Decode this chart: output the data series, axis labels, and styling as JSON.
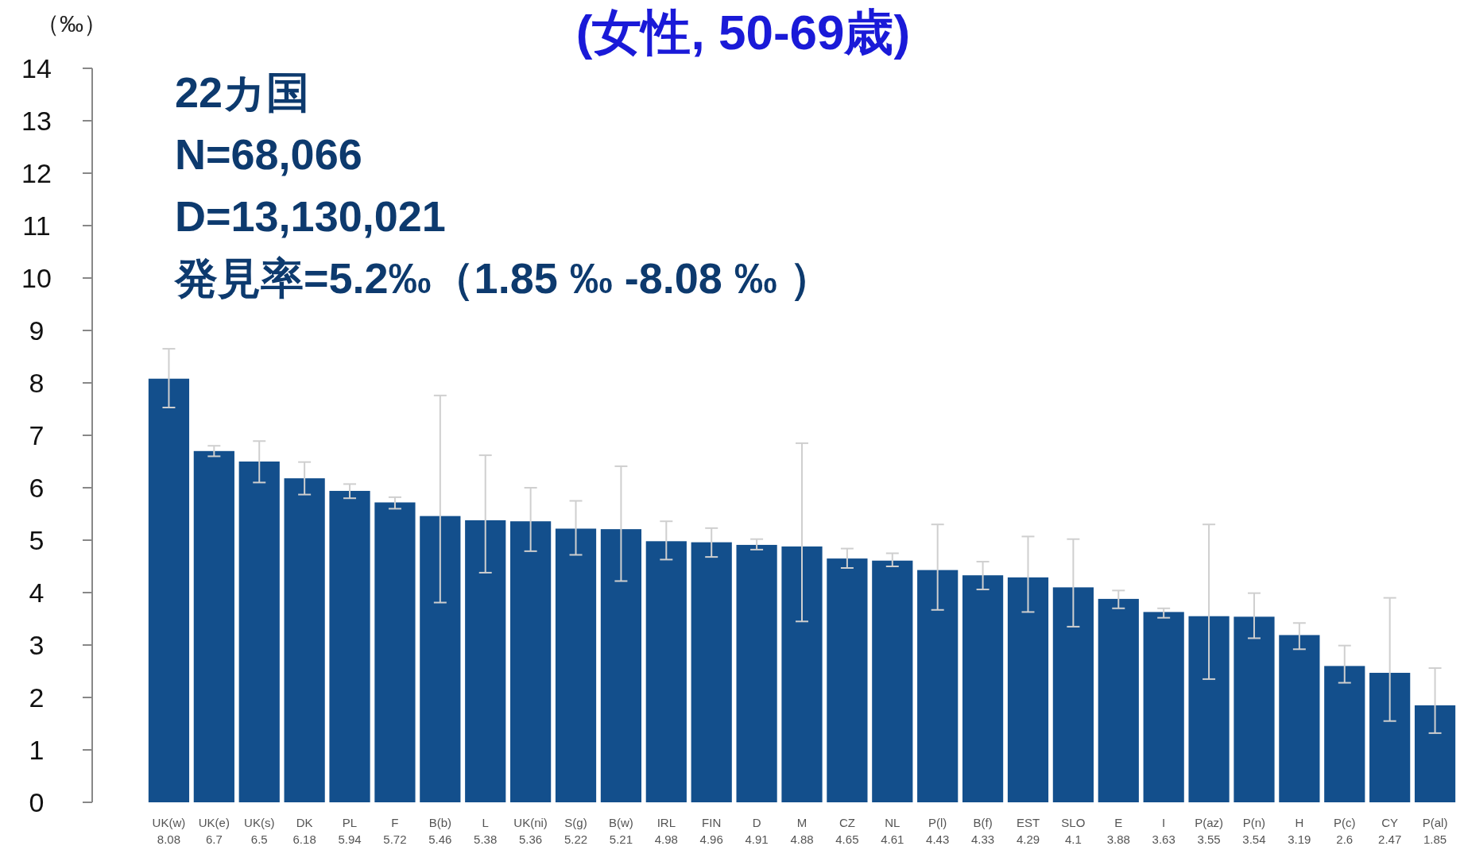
{
  "chart_data": {
    "type": "bar",
    "title": "(女性, 50-69歳)",
    "ylabel": "（‰）",
    "annotations": [
      "22カ国",
      "N=68,066",
      "D=13,130,021",
      "発見率=5.2‰（1.85 ‰ -8.08 ‰ ）"
    ],
    "categories": [
      "UK(w)",
      "UK(e)",
      "UK(s)",
      "DK",
      "PL",
      "F",
      "B(b)",
      "L",
      "UK(ni)",
      "S(g)",
      "B(w)",
      "IRL",
      "FIN",
      "D",
      "M",
      "CZ",
      "NL",
      "P(l)",
      "B(f)",
      "EST",
      "SLO",
      "E",
      "I",
      "P(az)",
      "P(n)",
      "H",
      "P(c)",
      "CY",
      "P(al)"
    ],
    "values": [
      8.08,
      6.7,
      6.5,
      6.18,
      5.94,
      5.72,
      5.46,
      5.38,
      5.36,
      5.22,
      5.21,
      4.98,
      4.96,
      4.91,
      4.88,
      4.65,
      4.61,
      4.43,
      4.33,
      4.29,
      4.1,
      3.88,
      3.63,
      3.55,
      3.54,
      3.19,
      2.6,
      2.47,
      1.85
    ],
    "errors": [
      [
        7.53,
        8.65
      ],
      [
        6.6,
        6.8
      ],
      [
        6.1,
        6.89
      ],
      [
        5.87,
        6.49
      ],
      [
        5.8,
        6.07
      ],
      [
        5.6,
        5.82
      ],
      [
        3.81,
        7.76
      ],
      [
        4.38,
        6.62
      ],
      [
        4.79,
        6.0
      ],
      [
        4.72,
        5.75
      ],
      [
        4.22,
        6.41
      ],
      [
        4.63,
        5.36
      ],
      [
        4.68,
        5.23
      ],
      [
        4.82,
        5.02
      ],
      [
        3.45,
        6.85
      ],
      [
        4.47,
        4.84
      ],
      [
        4.5,
        4.75
      ],
      [
        3.67,
        5.3
      ],
      [
        4.06,
        4.59
      ],
      [
        3.63,
        5.07
      ],
      [
        3.35,
        5.02
      ],
      [
        3.7,
        4.04
      ],
      [
        3.52,
        3.7
      ],
      [
        2.35,
        5.3
      ],
      [
        3.13,
        3.99
      ],
      [
        2.92,
        3.42
      ],
      [
        2.28,
        2.99
      ],
      [
        1.55,
        3.9
      ],
      [
        1.32,
        2.56
      ]
    ],
    "color": "#134f8c",
    "ylim": [
      0,
      14
    ],
    "yticks": [
      0,
      1,
      2,
      3,
      4,
      5,
      6,
      7,
      8,
      9,
      10,
      11,
      12,
      13,
      14
    ],
    "data_labels": true,
    "grid": false
  }
}
